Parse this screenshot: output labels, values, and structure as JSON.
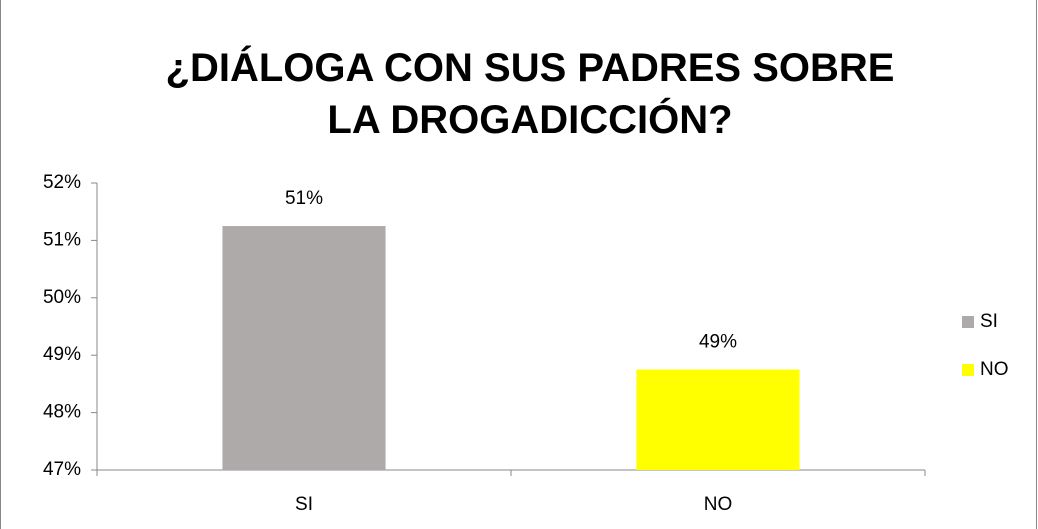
{
  "chart_data": {
    "type": "bar",
    "title": "¿DIÁLOGA CON SUS PADRES SOBRE LA DROGADICCIÓN?",
    "categories": [
      "SI",
      "NO"
    ],
    "values": [
      51.25,
      48.75
    ],
    "value_labels": [
      "51%",
      "49%"
    ],
    "colors": [
      "#aeaaaa",
      "#ffff00"
    ],
    "ylim": [
      47,
      52
    ],
    "yticks": [
      {
        "value": 47,
        "label": "47%"
      },
      {
        "value": 48,
        "label": "48%"
      },
      {
        "value": 49,
        "label": "49%"
      },
      {
        "value": 50,
        "label": "50%"
      },
      {
        "value": 51,
        "label": "51%"
      },
      {
        "value": 52,
        "label": "52%"
      }
    ],
    "grid": false,
    "legend": "right"
  }
}
